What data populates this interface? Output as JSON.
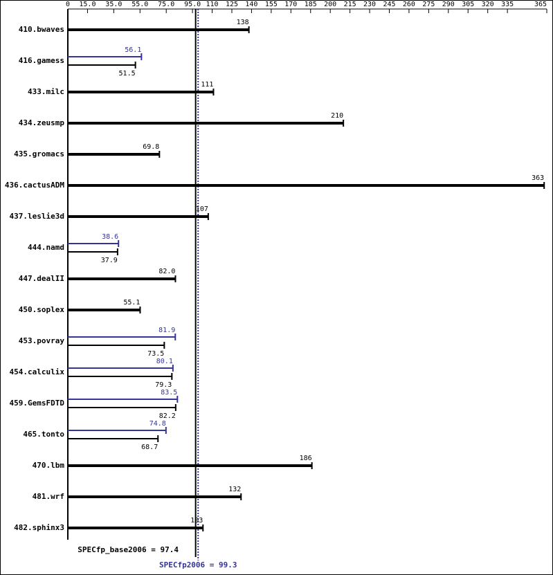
{
  "chart_data": {
    "type": "bar",
    "categories": [
      "410.bwaves",
      "416.gamess",
      "433.milc",
      "434.zeusmp",
      "435.gromacs",
      "436.cactusADM",
      "437.leslie3d",
      "444.namd",
      "447.dealII",
      "450.soplex",
      "453.povray",
      "454.calculix",
      "459.GemsFDTD",
      "465.tonto",
      "470.lbm",
      "481.wrf",
      "482.sphinx3"
    ],
    "series": [
      {
        "color": "#000000",
        "values": [
          138,
          51.5,
          111,
          210,
          69.8,
          363,
          107,
          37.9,
          82.0,
          55.1,
          73.5,
          79.3,
          82.2,
          68.7,
          186,
          132,
          103
        ],
        "value_labels": [
          "138",
          "51.5",
          "111",
          "210",
          "69.8",
          "363",
          "107",
          "37.9",
          "82.0",
          "55.1",
          "73.5",
          "79.3",
          "82.2",
          "68.7",
          "186",
          "132",
          "103"
        ]
      },
      {
        "color": "#333399",
        "values": [
          null,
          56.1,
          null,
          null,
          null,
          null,
          null,
          38.6,
          null,
          null,
          81.9,
          80.1,
          83.5,
          74.8,
          null,
          null,
          null
        ]
      }
    ],
    "xlim": [
      0,
      365
    ],
    "xticks": [
      0,
      {
        "value": 15,
        "label": "15.0"
      },
      {
        "value": 35,
        "label": "35.0"
      },
      {
        "value": 55,
        "label": "55.0"
      },
      {
        "value": 75,
        "label": "75.0"
      },
      {
        "value": 95,
        "label": "95.0"
      },
      110,
      125,
      140,
      155,
      170,
      185,
      200,
      215,
      230,
      245,
      260,
      275,
      290,
      305,
      320,
      335,
      365
    ],
    "reference_lines": [
      {
        "text": "SPECfp_base2006 = 97.4",
        "value": 97.4,
        "color": "#000000"
      },
      {
        "text": "SPECfp2006 = 99.3",
        "value": 99.3,
        "color": "#333399"
      }
    ]
  }
}
